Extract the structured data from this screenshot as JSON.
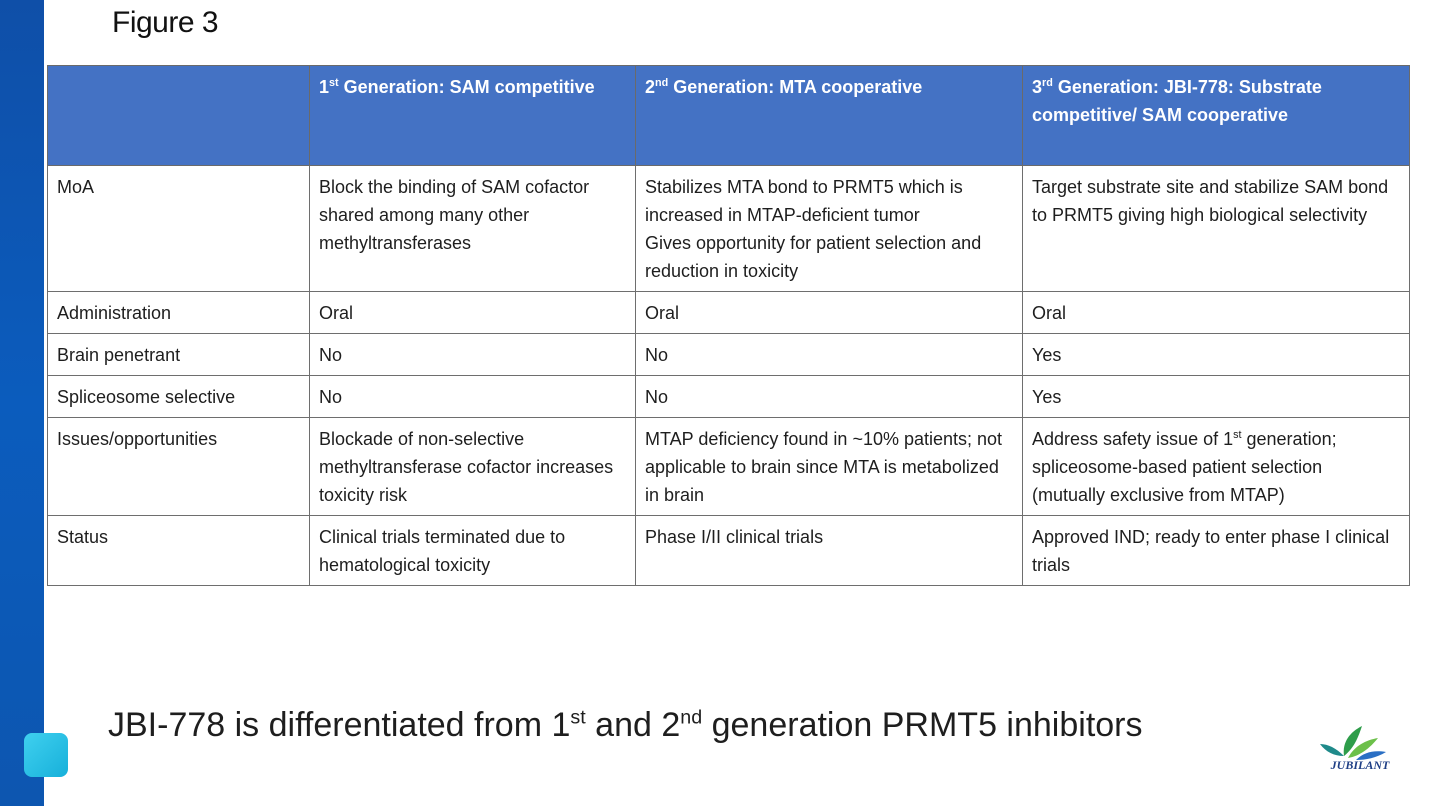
{
  "figure_title": "Figure 3",
  "table": {
    "header": {
      "corner": "",
      "col1": {
        "gen_num": "1",
        "gen_sup": "st",
        "text": " Generation: SAM competitive"
      },
      "col2": {
        "gen_num": "2",
        "gen_sup": "nd",
        "text": " Generation: MTA cooperative"
      },
      "col3": {
        "gen_num": "3",
        "gen_sup": "rd",
        "text": " Generation: JBI-778: Substrate competitive/ SAM cooperative"
      }
    },
    "rows": [
      {
        "label": "MoA",
        "c1": "Block the binding of SAM cofactor shared among many other methyltransferases",
        "c2a": "Stabilizes MTA bond to PRMT5 which is increased in MTAP-deficient tumor",
        "c2b": "Gives opportunity for patient selection and reduction in toxicity",
        "c3": "Target substrate site and stabilize SAM bond to PRMT5 giving high biological selectivity"
      },
      {
        "label": "Administration",
        "c1": "Oral",
        "c2": "Oral",
        "c3": "Oral"
      },
      {
        "label": "Brain penetrant",
        "c1": "No",
        "c2": "No",
        "c3": "Yes"
      },
      {
        "label": "Spliceosome selective",
        "c1": "No",
        "c2": "No",
        "c3": "Yes"
      },
      {
        "label": "Issues/opportunities",
        "c1": "Blockade of non-selective methyltransferase cofactor increases toxicity risk",
        "c2": "MTAP deficiency found in ~10% patients; not applicable to brain since MTA is metabolized in brain",
        "c3_pre": "Address safety issue of 1",
        "c3_sup": "st",
        "c3_post": " generation; spliceosome-based patient selection (mutually exclusive from MTAP)"
      },
      {
        "label": "Status",
        "c1": "Clinical trials terminated due to hematological toxicity",
        "c2": "Phase I/II clinical trials",
        "c3": "Approved IND; ready to enter phase I clinical trials"
      }
    ]
  },
  "footer": {
    "part1": "JBI-778 is differentiated from 1",
    "sup1": "st",
    "part2": " and 2",
    "sup2": "nd",
    "part3": " generation PRMT5 inhibitors"
  },
  "logo": {
    "text": "JUBILANT",
    "icon": "jubilant-leaf-logo-icon"
  },
  "colors": {
    "header_bg": "#4472c4",
    "left_bar": "#0b5cbd",
    "accent_square": "#29c1e6"
  }
}
